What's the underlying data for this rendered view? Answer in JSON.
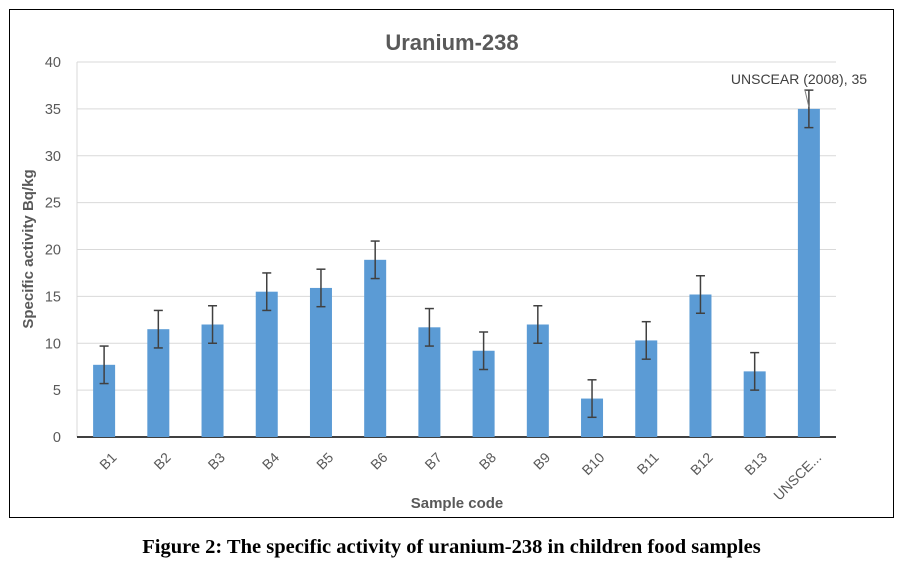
{
  "chart_data": {
    "type": "bar",
    "title": "Uranium-238",
    "xlabel": "Sample code",
    "ylabel": "Specific activity  Bq/kg",
    "ylim": [
      0,
      40
    ],
    "yticks": [
      0,
      5,
      10,
      15,
      20,
      25,
      30,
      35,
      40
    ],
    "grid": true,
    "categories": [
      "B1",
      "B2",
      "B3",
      "B4",
      "B5",
      "B6",
      "B7",
      "B8",
      "B9",
      "B10",
      "B11",
      "B12",
      "B13",
      "UNSCE..."
    ],
    "values": [
      7.7,
      11.5,
      12.0,
      15.5,
      15.9,
      18.9,
      11.7,
      9.2,
      12.0,
      4.1,
      10.3,
      15.2,
      7.0,
      35.0
    ],
    "errors": [
      2.0,
      2.0,
      2.0,
      2.0,
      2.0,
      2.0,
      2.0,
      2.0,
      2.0,
      2.0,
      2.0,
      2.0,
      2.0,
      2.0
    ],
    "annotation": {
      "text": "UNSCEAR (2008), 35",
      "category_index": 13
    },
    "bar_color": "#5B9BD5"
  },
  "caption": "Figure 2: The specific activity of uranium-238 in children food samples"
}
